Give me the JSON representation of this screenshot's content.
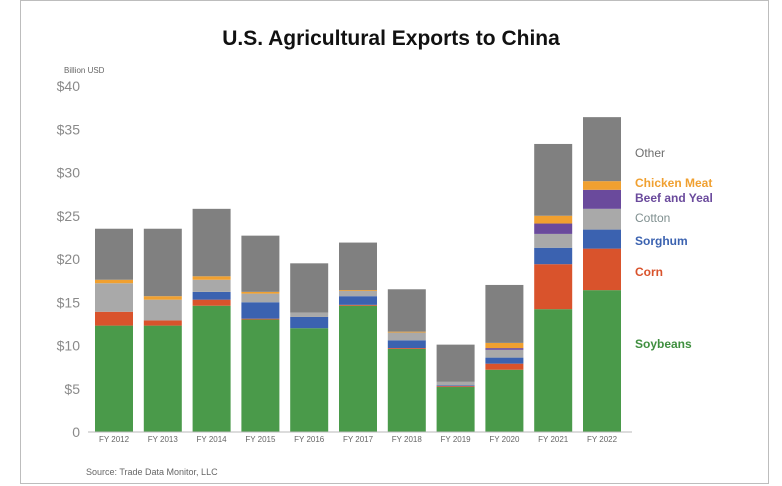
{
  "chart_data": {
    "type": "bar",
    "stacked": true,
    "title": "U.S. Agricultural Exports to China",
    "unit_label": "Billion USD",
    "source": "Source: Trade Data Monitor, LLC",
    "categories": [
      "FY 2012",
      "FY 2013",
      "FY 2014",
      "FY 2015",
      "FY 2016",
      "FY 2017",
      "FY 2018",
      "FY 2019",
      "FY 2020",
      "FY 2021",
      "FY 2022"
    ],
    "ylim": [
      0,
      40
    ],
    "yticks": [
      {
        "value": 0,
        "label": "0"
      },
      {
        "value": 5,
        "label": "$5"
      },
      {
        "value": 10,
        "label": "$10"
      },
      {
        "value": 15,
        "label": "$15"
      },
      {
        "value": 20,
        "label": "$20"
      },
      {
        "value": 25,
        "label": "$25"
      },
      {
        "value": 30,
        "label": "$30"
      },
      {
        "value": 35,
        "label": "$35"
      },
      {
        "value": 40,
        "label": "$40"
      }
    ],
    "grid": false,
    "legend_placement": "right",
    "series": [
      {
        "name": "Soybeans",
        "color": "#4a9a4a",
        "label_color": "#3f8f3f",
        "values": [
          12.3,
          12.3,
          14.6,
          13.0,
          12.0,
          14.6,
          9.6,
          5.2,
          7.2,
          14.2,
          16.4
        ]
      },
      {
        "name": "Corn",
        "color": "#d9532c",
        "label_color": "#d9532c",
        "values": [
          1.6,
          0.6,
          0.7,
          0.1,
          0.0,
          0.1,
          0.1,
          0.1,
          0.7,
          5.2,
          4.8
        ]
      },
      {
        "name": "Sorghum",
        "color": "#3b62b0",
        "label_color": "#3b62b0",
        "values": [
          0.0,
          0.0,
          0.9,
          1.9,
          1.3,
          1.0,
          0.9,
          0.1,
          0.7,
          1.9,
          2.2
        ]
      },
      {
        "name": "Cotton",
        "color": "#a9a9a9",
        "label_color": "#7f8f8f",
        "values": [
          3.3,
          2.4,
          1.4,
          1.0,
          0.5,
          0.6,
          0.9,
          0.4,
          0.9,
          1.6,
          2.4
        ]
      },
      {
        "name": "Beef and Yeal",
        "color": "#6a4a9c",
        "label_color": "#6a4a9c",
        "values": [
          0.0,
          0.0,
          0.0,
          0.0,
          0.0,
          0.0,
          0.0,
          0.0,
          0.2,
          1.2,
          2.2
        ]
      },
      {
        "name": "Chicken Meat",
        "color": "#f0a030",
        "label_color": "#f0a030",
        "values": [
          0.4,
          0.4,
          0.4,
          0.2,
          0.0,
          0.1,
          0.1,
          0.0,
          0.6,
          0.9,
          1.0
        ]
      },
      {
        "name": "Other",
        "color": "#808080",
        "label_color": "#6e6e6e",
        "values": [
          5.9,
          7.8,
          7.8,
          6.5,
          5.7,
          5.5,
          4.9,
          4.3,
          6.7,
          8.3,
          7.4
        ]
      }
    ]
  }
}
